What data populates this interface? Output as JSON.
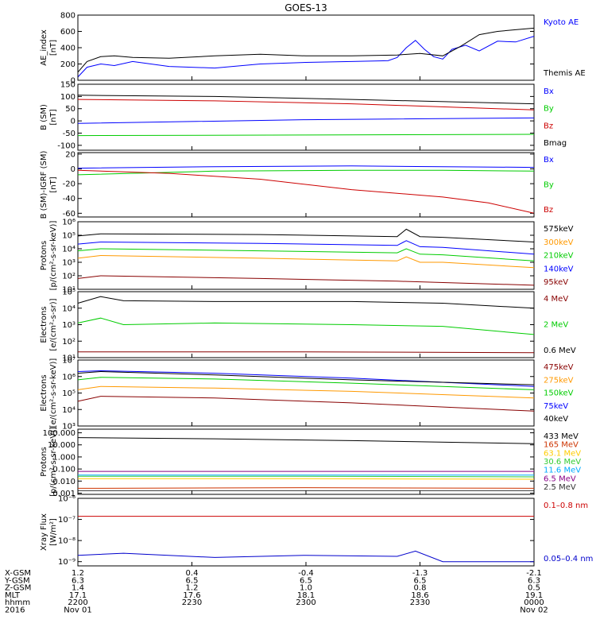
{
  "title": "GOES-13",
  "chart_data": [
    {
      "type": "line",
      "ylabel": [
        "AE_index",
        "[nT]"
      ],
      "yticks": [
        {
          "v": 800,
          "t": "800"
        },
        {
          "v": 600,
          "t": "600"
        },
        {
          "v": 400,
          "t": "400"
        },
        {
          "v": 200,
          "t": "200"
        },
        {
          "v": 0,
          "t": "0"
        }
      ],
      "ylim": [
        0,
        800
      ],
      "series": [
        {
          "name": "Kyoto AE",
          "color": "#0000ff",
          "x": [
            0,
            0.02,
            0.05,
            0.08,
            0.12,
            0.2,
            0.3,
            0.4,
            0.5,
            0.6,
            0.68,
            0.7,
            0.72,
            0.74,
            0.76,
            0.78,
            0.8,
            0.82,
            0.85,
            0.88,
            0.92,
            0.96,
            1.0
          ],
          "values": [
            40,
            160,
            200,
            180,
            230,
            170,
            150,
            200,
            220,
            230,
            240,
            280,
            400,
            490,
            380,
            290,
            260,
            380,
            430,
            360,
            480,
            470,
            540
          ]
        },
        {
          "name": "Themis AE",
          "color": "#000000",
          "x": [
            0,
            0.02,
            0.05,
            0.08,
            0.12,
            0.2,
            0.3,
            0.4,
            0.5,
            0.6,
            0.7,
            0.75,
            0.8,
            0.84,
            0.88,
            0.92,
            0.96,
            1.0
          ],
          "values": [
            100,
            230,
            290,
            300,
            280,
            270,
            300,
            320,
            300,
            300,
            310,
            330,
            300,
            420,
            560,
            600,
            620,
            640
          ]
        }
      ]
    },
    {
      "type": "line",
      "ylabel": [
        "B (SM)",
        "[nT]"
      ],
      "yticks": [
        {
          "v": 150,
          "t": "150"
        },
        {
          "v": 100,
          "t": "100"
        },
        {
          "v": 50,
          "t": "50"
        },
        {
          "v": 0,
          "t": "0"
        },
        {
          "v": -50,
          "t": "-50"
        },
        {
          "v": -100,
          "t": "-100"
        }
      ],
      "ylim": [
        -120,
        150
      ],
      "series": [
        {
          "name": "Bx",
          "color": "#0000ff",
          "x": [
            0,
            0.5,
            1
          ],
          "values": [
            -10,
            5,
            12
          ]
        },
        {
          "name": "By",
          "color": "#00cc00",
          "x": [
            0,
            0.5,
            1
          ],
          "values": [
            -60,
            -58,
            -55
          ]
        },
        {
          "name": "Bz",
          "color": "#cc0000",
          "x": [
            0,
            0.3,
            0.6,
            1
          ],
          "values": [
            88,
            82,
            70,
            45
          ]
        },
        {
          "name": "Bmag",
          "color": "#000000",
          "x": [
            0,
            0.3,
            0.6,
            1
          ],
          "values": [
            105,
            100,
            88,
            70
          ]
        }
      ]
    },
    {
      "type": "line",
      "ylabel": [
        "B (SM)-IGRF (SM)",
        "[nT]"
      ],
      "yticks": [
        {
          "v": 20,
          "t": "20"
        },
        {
          "v": 0,
          "t": "0"
        },
        {
          "v": -20,
          "t": "-20"
        },
        {
          "v": -40,
          "t": "-40"
        },
        {
          "v": -60,
          "t": "-60"
        }
      ],
      "ylim": [
        -65,
        22
      ],
      "series": [
        {
          "name": "Bx",
          "color": "#0000ff",
          "x": [
            0,
            0.3,
            0.6,
            0.8,
            1
          ],
          "values": [
            1,
            3,
            4,
            3,
            2
          ]
        },
        {
          "name": "By",
          "color": "#00cc00",
          "x": [
            0,
            0.3,
            0.6,
            0.8,
            1
          ],
          "values": [
            -8,
            -3,
            -2,
            -2,
            -3
          ]
        },
        {
          "name": "Bz",
          "color": "#cc0000",
          "x": [
            0,
            0.2,
            0.4,
            0.6,
            0.8,
            0.9,
            1
          ],
          "values": [
            -2,
            -6,
            -14,
            -28,
            -38,
            -46,
            -60
          ]
        }
      ]
    },
    {
      "type": "line",
      "ylabel": [
        "Protons",
        "[p/(cm²-s-sr-keV)]"
      ],
      "yscale": "log",
      "yticks": [
        {
          "v": 6,
          "t": "10⁶"
        },
        {
          "v": 5,
          "t": "10⁵"
        },
        {
          "v": 4,
          "t": "10⁴"
        },
        {
          "v": 3,
          "t": "10³"
        },
        {
          "v": 2,
          "t": "10²"
        },
        {
          "v": 1,
          "t": "10¹"
        }
      ],
      "ylim": [
        1,
        6
      ],
      "series": [
        {
          "name": "575keV",
          "color": "#000000",
          "x": [
            0,
            0.05,
            0.4,
            0.7,
            0.72,
            0.75,
            0.8,
            1
          ],
          "values": [
            4.95,
            5.1,
            5.05,
            4.9,
            5.45,
            4.9,
            4.85,
            4.5
          ]
        },
        {
          "name": "300keV",
          "color": "#ff9900",
          "x": [
            0,
            0.05,
            0.4,
            0.7,
            0.72,
            0.75,
            0.8,
            1
          ],
          "values": [
            3.3,
            3.5,
            3.3,
            3.1,
            3.4,
            3.0,
            3.0,
            2.6
          ]
        },
        {
          "name": "210keV",
          "color": "#00cc00",
          "x": [
            0,
            0.05,
            0.4,
            0.7,
            0.72,
            0.75,
            0.8,
            1
          ],
          "values": [
            3.85,
            4.0,
            3.85,
            3.7,
            4.0,
            3.6,
            3.55,
            3.1
          ]
        },
        {
          "name": "140keV",
          "color": "#0000ff",
          "x": [
            0,
            0.05,
            0.4,
            0.7,
            0.72,
            0.75,
            0.8,
            1
          ],
          "values": [
            4.35,
            4.5,
            4.4,
            4.25,
            4.6,
            4.15,
            4.1,
            3.6
          ]
        },
        {
          "name": "95keV",
          "color": "#880000",
          "x": [
            0,
            0.05,
            0.4,
            0.7,
            1
          ],
          "values": [
            1.8,
            2.0,
            1.8,
            1.6,
            1.3
          ]
        }
      ]
    },
    {
      "type": "line",
      "ylabel": [
        "Electrons",
        "[e/(cm²-s-sr)]"
      ],
      "yscale": "log",
      "yticks": [
        {
          "v": 5,
          "t": "10⁵"
        },
        {
          "v": 4,
          "t": "10⁴"
        },
        {
          "v": 3,
          "t": "10³"
        },
        {
          "v": 2,
          "t": "10²"
        },
        {
          "v": 1,
          "t": "10¹"
        }
      ],
      "ylim": [
        1,
        5
      ],
      "series": [
        {
          "name": "4 MeV",
          "color": "#880000",
          "x": [
            0,
            0.5,
            1
          ],
          "values": [
            1.35,
            1.35,
            1.3
          ]
        },
        {
          "name": "2 MeV",
          "color": "#00cc00",
          "x": [
            0,
            0.05,
            0.1,
            0.3,
            0.6,
            0.8,
            1
          ],
          "values": [
            3.1,
            3.4,
            3.0,
            3.1,
            3.0,
            2.9,
            2.4
          ]
        },
        {
          "name": "0.6 MeV",
          "color": "#000000",
          "x": [
            0,
            0.05,
            0.1,
            0.3,
            0.6,
            0.8,
            1
          ],
          "values": [
            4.3,
            4.7,
            4.45,
            4.4,
            4.4,
            4.3,
            4.0
          ]
        }
      ]
    },
    {
      "type": "line",
      "ylabel": [
        "Electrons",
        "[e/(cm²-s-sr-keV)]"
      ],
      "yscale": "log",
      "yticks": [
        {
          "v": 7,
          "t": "10⁷"
        },
        {
          "v": 6,
          "t": "10⁶"
        },
        {
          "v": 5,
          "t": "10⁵"
        },
        {
          "v": 4,
          "t": "10⁴"
        },
        {
          "v": 3,
          "t": "10³"
        }
      ],
      "ylim": [
        3,
        7
      ],
      "series": [
        {
          "name": "475keV",
          "color": "#880000",
          "x": [
            0,
            0.05,
            0.3,
            0.6,
            1
          ],
          "values": [
            4.5,
            4.8,
            4.7,
            4.4,
            3.9
          ]
        },
        {
          "name": "275keV",
          "color": "#ff9900",
          "x": [
            0,
            0.05,
            0.3,
            0.6,
            1
          ],
          "values": [
            5.2,
            5.4,
            5.3,
            5.1,
            4.7
          ]
        },
        {
          "name": "150keV",
          "color": "#00cc00",
          "x": [
            0,
            0.05,
            0.3,
            0.6,
            1
          ],
          "values": [
            5.8,
            5.95,
            5.85,
            5.6,
            5.2
          ]
        },
        {
          "name": "75keV",
          "color": "#0000ff",
          "x": [
            0,
            0.05,
            0.3,
            0.6,
            1
          ],
          "values": [
            6.3,
            6.35,
            6.2,
            5.9,
            5.4
          ]
        },
        {
          "name": "40keV",
          "color": "#000000",
          "x": [
            0,
            0.05,
            0.3,
            0.6,
            1
          ],
          "values": [
            6.2,
            6.3,
            6.1,
            5.8,
            5.5
          ]
        }
      ]
    },
    {
      "type": "line",
      "ylabel": [
        "Protons",
        "[p/(cm²-s-sr-keV)]"
      ],
      "yscale": "log",
      "yticks": [
        {
          "v": 2,
          "t": "100.000"
        },
        {
          "v": 1,
          "t": "10.000"
        },
        {
          "v": 0,
          "t": "1.000"
        },
        {
          "v": -1,
          "t": "0.100"
        },
        {
          "v": -2,
          "t": "0.010"
        },
        {
          "v": -3,
          "t": "0.001"
        }
      ],
      "ylim": [
        -3.1,
        2.3
      ],
      "series": [
        {
          "name": "433 MeV",
          "color": "#000000",
          "x": [
            0,
            0.3,
            0.6,
            1
          ],
          "values": [
            1.6,
            1.5,
            1.35,
            1.1
          ]
        },
        {
          "name": "165 MeV",
          "color": "#cc3300",
          "x": [
            0,
            0.5,
            1
          ],
          "values": [
            -2.6,
            -2.55,
            -2.6
          ]
        },
        {
          "name": "63.1 MeV",
          "color": "#ffcc00",
          "x": [
            0,
            0.5,
            1
          ],
          "values": [
            -1.8,
            -1.8,
            -1.85
          ]
        },
        {
          "name": "30.6 MeV",
          "color": "#33cc33",
          "x": [
            0,
            0.5,
            1
          ],
          "values": [
            -1.6,
            -1.6,
            -1.65
          ]
        },
        {
          "name": "11.6 MeV",
          "color": "#00aaff",
          "x": [
            0,
            0.5,
            1
          ],
          "values": [
            -1.5,
            -1.5,
            -1.5
          ]
        },
        {
          "name": "6.5 MeV",
          "color": "#880088",
          "x": [
            0,
            0.5,
            1
          ],
          "values": [
            -1.2,
            -1.2,
            -1.2
          ]
        },
        {
          "name": "2.5 MeV",
          "color": "#333333",
          "x": [
            0,
            0.5,
            1
          ],
          "values": [
            -2.8,
            -2.8,
            -2.8
          ]
        }
      ]
    },
    {
      "type": "line",
      "ylabel": [
        "Xray Flux",
        "[W/m²]"
      ],
      "yscale": "log",
      "yticks": [
        {
          "v": -6,
          "t": "10⁻⁶"
        },
        {
          "v": -7,
          "t": "10⁻⁷"
        },
        {
          "v": -8,
          "t": "10⁻⁸"
        },
        {
          "v": -9,
          "t": "10⁻⁹"
        }
      ],
      "ylim": [
        -9.2,
        -6
      ],
      "series": [
        {
          "name": "0.1–0.8 nm",
          "color": "#cc0000",
          "x": [
            0,
            0.5,
            1
          ],
          "values": [
            -6.85,
            -6.85,
            -6.85
          ]
        },
        {
          "name": "0.05–0.4 nm",
          "color": "#0000cc",
          "x": [
            0,
            0.1,
            0.3,
            0.5,
            0.7,
            0.74,
            0.8,
            1
          ],
          "values": [
            -8.7,
            -8.6,
            -8.8,
            -8.7,
            -8.75,
            -8.5,
            -9.0,
            -9.0
          ]
        }
      ]
    }
  ],
  "x_axis": {
    "row_labels": [
      "X-GSM",
      "Y-GSM",
      "Z-GSM",
      "MLT",
      "hhmm",
      "2016"
    ],
    "ticks": [
      {
        "pos": 0,
        "vals": [
          "1.2",
          "6.3",
          "1.4",
          "17.1",
          "2200",
          "Nov 01"
        ]
      },
      {
        "pos": 0.25,
        "vals": [
          "0.4",
          "6.5",
          "1.2",
          "17.6",
          "2230",
          ""
        ]
      },
      {
        "pos": 0.5,
        "vals": [
          "-0.4",
          "6.5",
          "1.0",
          "18.1",
          "2300",
          ""
        ]
      },
      {
        "pos": 0.75,
        "vals": [
          "-1.3",
          "6.5",
          "0.8",
          "18.6",
          "2330",
          ""
        ]
      },
      {
        "pos": 1,
        "vals": [
          "-2.1",
          "6.3",
          "0.5",
          "19.1",
          "0000",
          "Nov 02"
        ]
      }
    ]
  }
}
